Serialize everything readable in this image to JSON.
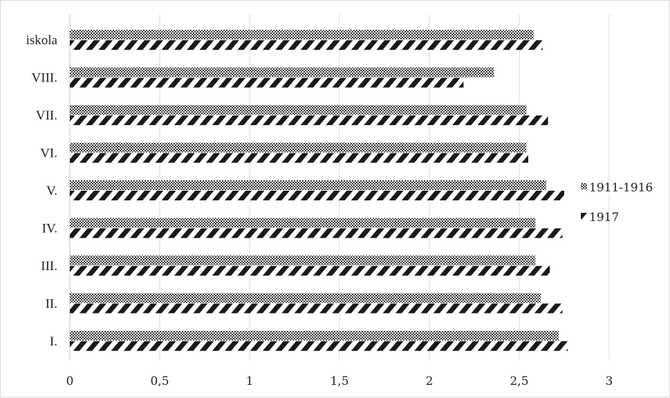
{
  "chart_data": {
    "type": "bar",
    "orientation": "horizontal",
    "categories": [
      "I.",
      "II.",
      "III.",
      "IV.",
      "V.",
      "VI.",
      "VII.",
      "VIII.",
      "iskola"
    ],
    "series": [
      {
        "name": "1911-1916",
        "values": [
          2.72,
          2.62,
          2.59,
          2.59,
          2.65,
          2.54,
          2.54,
          2.36,
          2.58
        ],
        "pattern": "dotted-crosshatch",
        "color": "#333333"
      },
      {
        "name": "1917",
        "values": [
          2.77,
          2.74,
          2.67,
          2.74,
          2.75,
          2.55,
          2.66,
          2.19,
          2.63
        ],
        "pattern": "diagonal-stripes",
        "color": "#1a1a1a"
      }
    ],
    "xlim": [
      0,
      3
    ],
    "xticks": [
      0,
      0.5,
      1,
      1.5,
      2,
      2.5,
      3
    ],
    "xtick_labels": [
      "0",
      "0,5",
      "1",
      "1,5",
      "2",
      "2,5",
      "3"
    ],
    "grid": "vertical",
    "legend_position": "right",
    "title": "",
    "xlabel": "",
    "ylabel": ""
  },
  "colors": {
    "grid": "#d9d9d9",
    "axis": "#bfbfbf",
    "text": "#222222"
  }
}
